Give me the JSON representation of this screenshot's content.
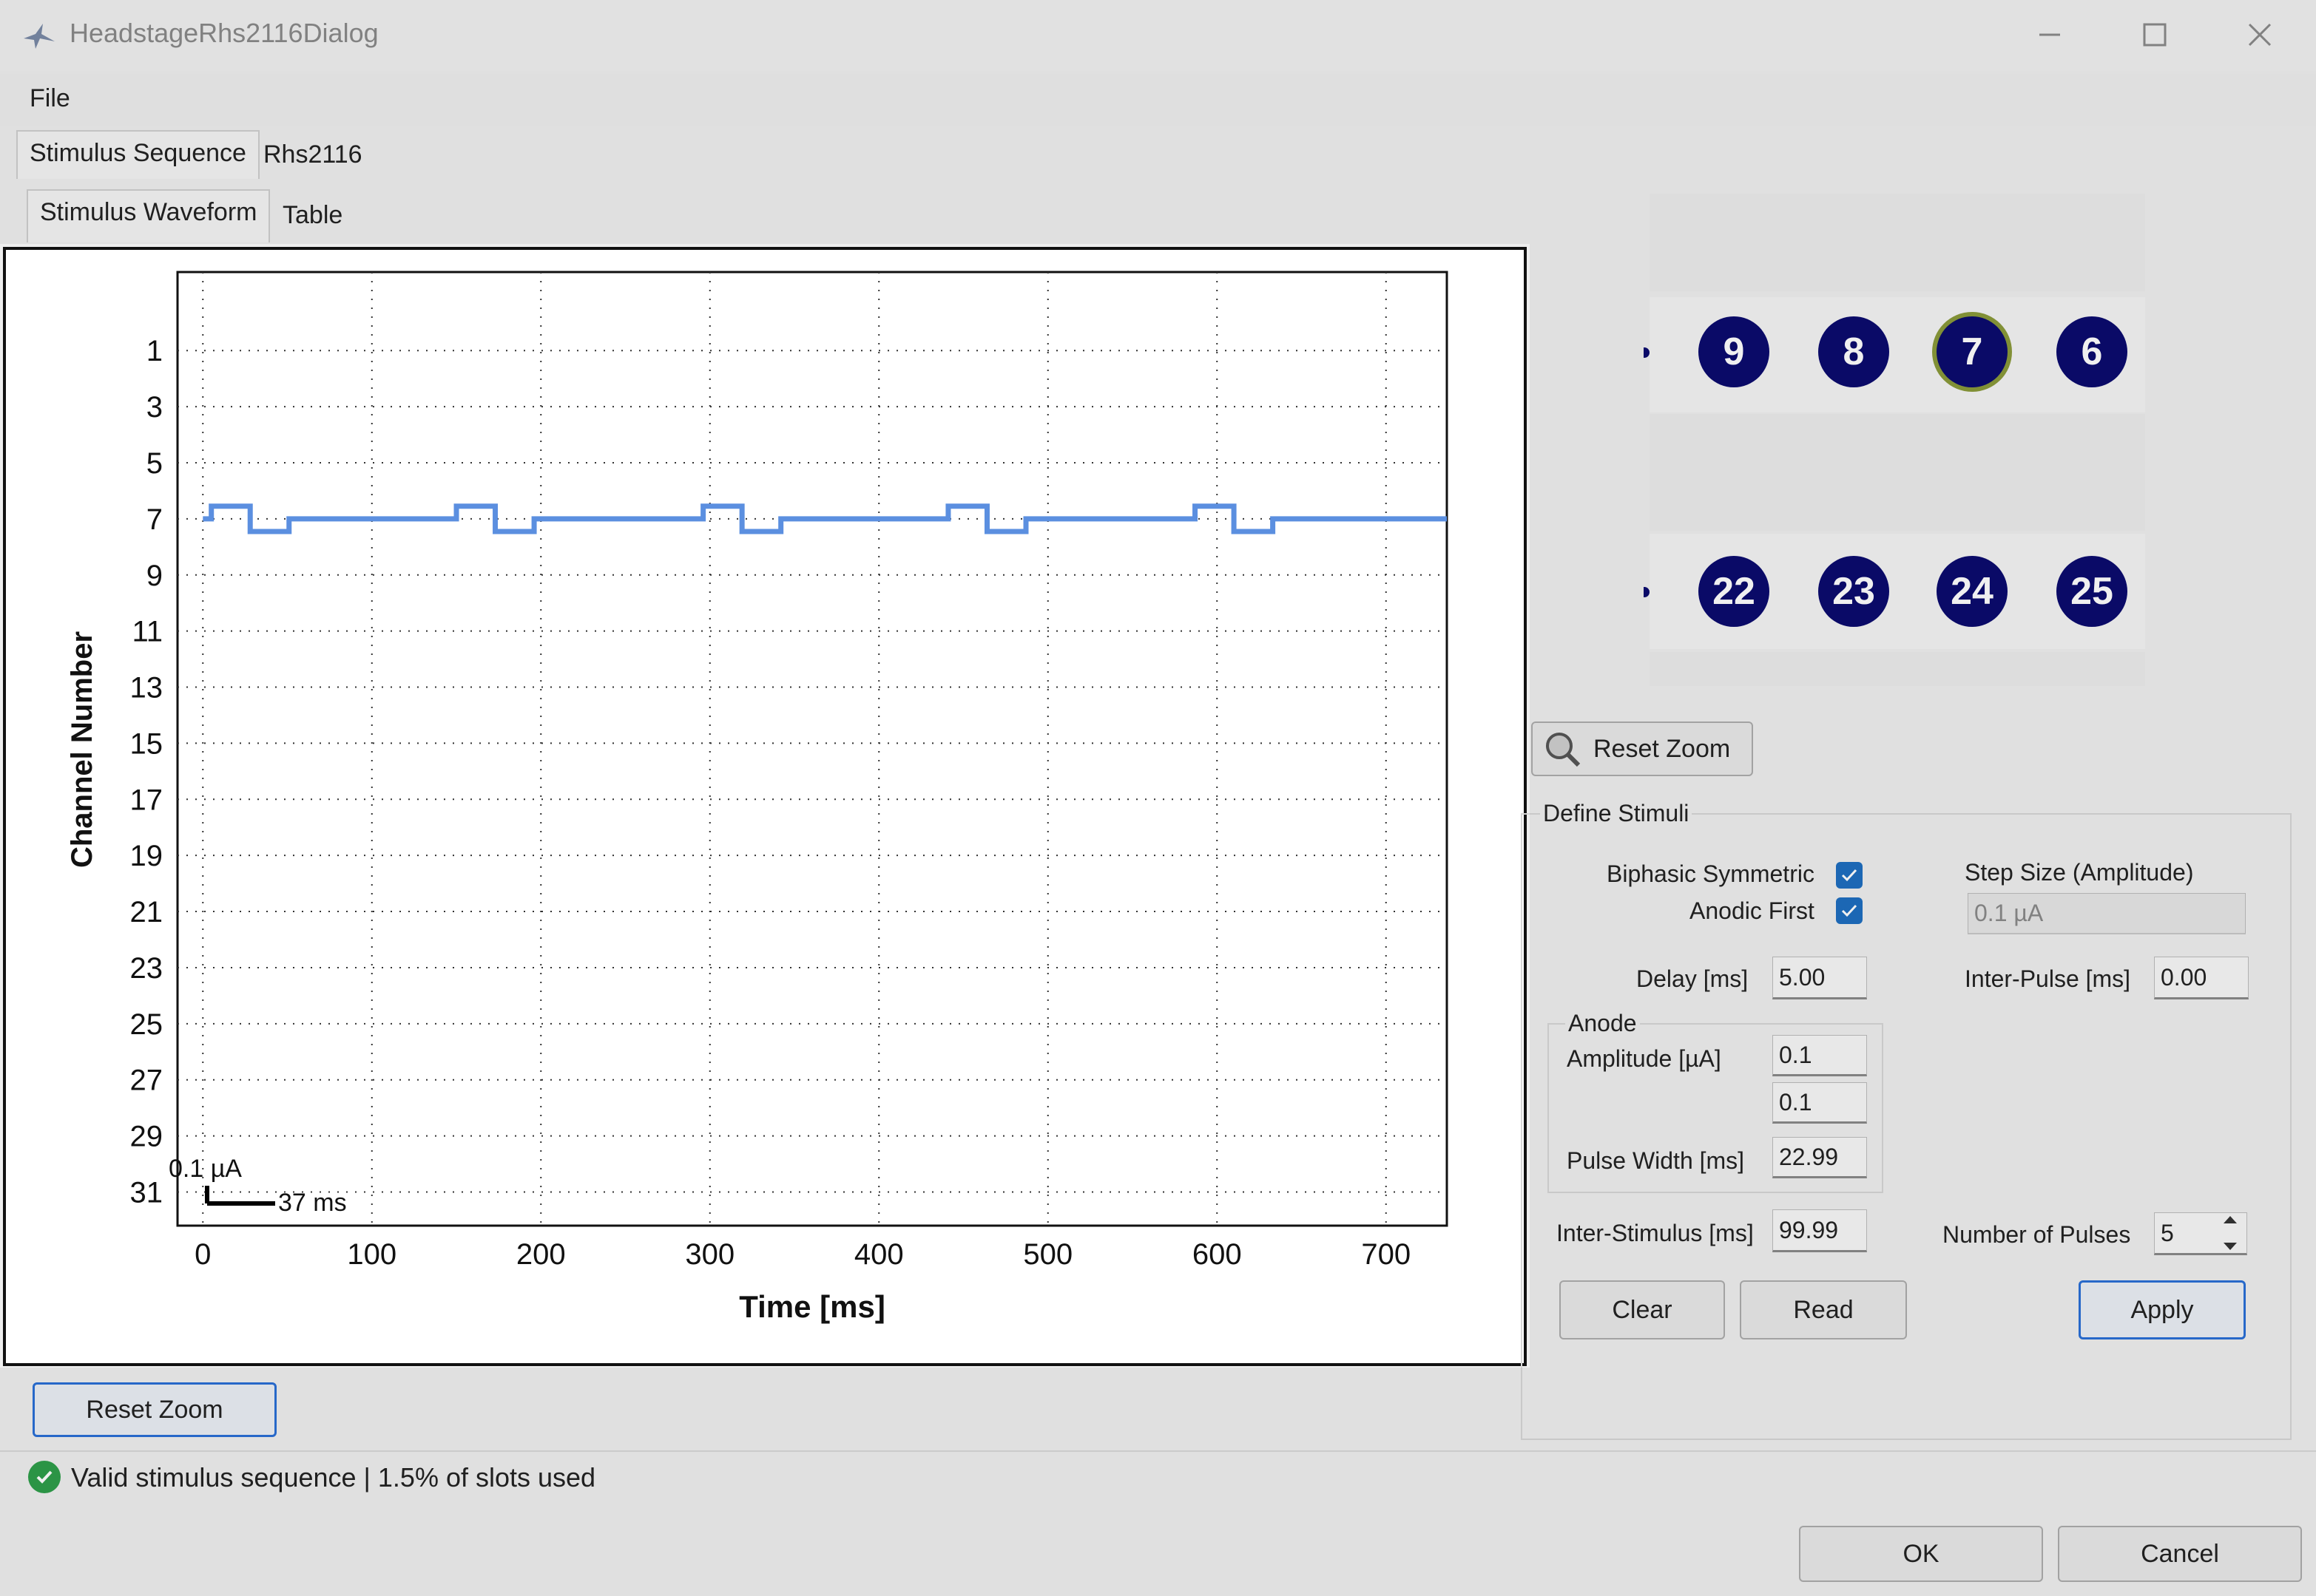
{
  "window": {
    "title": "HeadstageRhs2116Dialog",
    "controls": {
      "minimize": "minimize-icon",
      "maximize": "maximize-icon",
      "close": "close-icon"
    }
  },
  "menu": {
    "file": "File"
  },
  "tabs": {
    "stimulus_sequence": "Stimulus Sequence",
    "rhs2116": "Rhs2116"
  },
  "subtabs": {
    "stimulus_waveform": "Stimulus Waveform",
    "table": "Table"
  },
  "chart_data": {
    "type": "line",
    "xlabel": "Time [ms]",
    "ylabel": "Channel Number",
    "xlim": [
      -15,
      736
    ],
    "ylim": [
      32.2,
      -1.8
    ],
    "x_ticks": [
      0,
      100,
      200,
      300,
      400,
      500,
      600,
      700
    ],
    "y_ticks": [
      1,
      3,
      5,
      7,
      9,
      11,
      13,
      15,
      17,
      19,
      21,
      23,
      25,
      27,
      29,
      31
    ],
    "grid": true,
    "scale_bar": {
      "amplitude_label": "0.1 µA",
      "time_label": "37 ms"
    },
    "series": [
      {
        "channel": 7,
        "color": "#5b8fe0",
        "pulse_starts_ms": [
          5,
          150,
          296,
          441,
          587
        ],
        "pulse_width_ms": 22.99,
        "offset_up": -0.45,
        "offset_down": 0.45,
        "x": [
          0,
          5,
          5,
          27.99,
          27.99,
          50.98,
          50.98,
          150,
          150,
          172.99,
          172.99,
          195.98,
          195.98,
          296,
          296,
          318.99,
          318.99,
          341.98,
          341.98,
          441,
          441,
          463.99,
          463.99,
          486.98,
          486.98,
          587,
          587,
          609.99,
          609.99,
          632.98,
          632.98,
          736
        ],
        "y": [
          7,
          7,
          6.55,
          6.55,
          7.45,
          7.45,
          7,
          7,
          6.55,
          6.55,
          7.45,
          7.45,
          7,
          7,
          6.55,
          6.55,
          7.45,
          7.45,
          7,
          7,
          6.55,
          6.55,
          7.45,
          7.45,
          7,
          7,
          6.55,
          6.55,
          7.45,
          7.45,
          7,
          7
        ]
      }
    ]
  },
  "buttons": {
    "reset_zoom_left": "Reset Zoom",
    "reset_zoom_right": "Reset Zoom",
    "clear": "Clear",
    "read": "Read",
    "apply": "Apply",
    "ok": "OK",
    "cancel": "Cancel"
  },
  "electrodes": {
    "row1": [
      "9",
      "8",
      "7",
      "6"
    ],
    "row2": [
      "22",
      "23",
      "24",
      "25"
    ],
    "selected": "7"
  },
  "define_stimuli": {
    "title": "Define Stimuli",
    "biphasic_label": "Biphasic Symmetric",
    "anodic_label": "Anodic First",
    "step_size_label": "Step Size (Amplitude)",
    "step_size_value": "0.1 µA",
    "delay_label": "Delay [ms]",
    "delay_value": "5.00",
    "inter_pulse_label": "Inter-Pulse [ms]",
    "inter_pulse_value": "0.00",
    "anode_label": "Anode",
    "amplitude_label": "Amplitude [µA]",
    "amplitude_value": "0.1",
    "amplitude_value2": "0.1",
    "pulse_width_label": "Pulse Width [ms]",
    "pulse_width_value": "22.99",
    "inter_stimulus_label": "Inter-Stimulus [ms]",
    "inter_stimulus_value": "99.99",
    "num_pulses_label": "Number of Pulses",
    "num_pulses_value": "5"
  },
  "status": {
    "text": "Valid stimulus sequence | 1.5% of slots used"
  },
  "colors": {
    "accent": "#1e6ec0",
    "electrode": "#0b0b6e",
    "selected_ring": "#8a9a3a",
    "trace": "#5b8fe0",
    "status_ok": "#2e9e4a"
  }
}
